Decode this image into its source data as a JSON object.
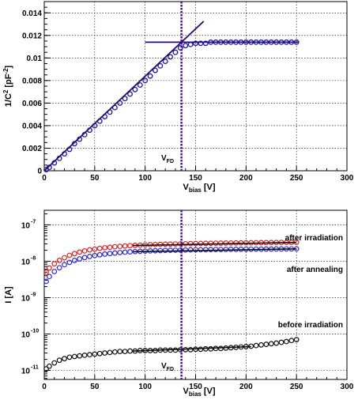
{
  "chart_data": [
    {
      "type": "scatter",
      "title": "",
      "xlabel": "V",
      "xlabel_sub": "bias",
      "xlabel_unit": "[V]",
      "ylabel": "1/C",
      "ylabel_sup": "2",
      "ylabel_unit_pre": "[pF",
      "ylabel_unit_sup": "-2",
      "ylabel_unit_post": "]",
      "xlim": [
        0,
        300
      ],
      "ylim": [
        0,
        0.015
      ],
      "grid": true,
      "x_ticks": [
        0,
        50,
        100,
        150,
        200,
        250,
        300
      ],
      "x_tick_labels": [
        "0",
        "50",
        "100",
        "150",
        "200",
        "250",
        "300"
      ],
      "y_ticks": [
        0,
        0.002,
        0.004,
        0.006,
        0.008,
        0.01,
        0.012,
        0.014
      ],
      "y_tick_labels": [
        "0",
        "0.002",
        "0.004",
        "0.006",
        "0.008",
        "0.01",
        "0.012",
        "0.014"
      ],
      "marker_color": "#1a1aa0",
      "fit_color": "#2a0a7a",
      "points": {
        "x": [
          2,
          5,
          10,
          15,
          20,
          25,
          30,
          35,
          40,
          45,
          50,
          55,
          60,
          65,
          70,
          75,
          80,
          85,
          90,
          95,
          100,
          105,
          110,
          115,
          120,
          125,
          130,
          135,
          140,
          145,
          150,
          155,
          160,
          165,
          170,
          175,
          180,
          185,
          190,
          195,
          200,
          205,
          210,
          215,
          220,
          225,
          230,
          235,
          240,
          245,
          250
        ],
        "y": [
          0.0001,
          0.0003,
          0.0007,
          0.0011,
          0.0015,
          0.0019,
          0.0024,
          0.0028,
          0.0032,
          0.0036,
          0.004,
          0.0044,
          0.0048,
          0.0052,
          0.0056,
          0.006,
          0.0064,
          0.0068,
          0.0072,
          0.0076,
          0.008,
          0.0084,
          0.0089,
          0.0093,
          0.0097,
          0.0101,
          0.0105,
          0.0109,
          0.0111,
          0.0112,
          0.0113,
          0.0113,
          0.0113,
          0.0114,
          0.0114,
          0.0114,
          0.0114,
          0.0114,
          0.0114,
          0.0114,
          0.0114,
          0.0114,
          0.0114,
          0.0114,
          0.0114,
          0.0114,
          0.0114,
          0.0114,
          0.0114,
          0.0114,
          0.0114
        ]
      },
      "fit_lines": [
        {
          "x": [
            0,
            158
          ],
          "y": [
            0,
            0.01325
          ]
        },
        {
          "x": [
            100,
            252
          ],
          "y": [
            0.0114,
            0.0114
          ]
        }
      ],
      "vline": {
        "x": 136,
        "color": "#4a1a8a",
        "label": "V",
        "label_sub": "FD"
      }
    },
    {
      "type": "scatter",
      "title": "",
      "xlabel": "V",
      "xlabel_sub": "bias",
      "xlabel_unit": "[V]",
      "ylabel": "I [A]",
      "xlim": [
        0,
        300
      ],
      "ylim_log10": [
        -11.25,
        -6.6
      ],
      "y_scale": "log",
      "grid": true,
      "x_ticks": [
        0,
        50,
        100,
        150,
        200,
        250,
        300
      ],
      "x_tick_labels": [
        "0",
        "50",
        "100",
        "150",
        "200",
        "250",
        "300"
      ],
      "y_ticks_log10": [
        -11,
        -10,
        -9,
        -8,
        -7
      ],
      "y_tick_labels": [
        "10",
        "10",
        "10",
        "10",
        "10"
      ],
      "y_tick_exps": [
        "-11",
        "-10",
        "-9",
        "-8",
        "-7"
      ],
      "x": [
        2,
        5,
        10,
        15,
        20,
        25,
        30,
        35,
        40,
        45,
        50,
        55,
        60,
        65,
        70,
        75,
        80,
        85,
        90,
        95,
        100,
        105,
        110,
        115,
        120,
        125,
        130,
        135,
        140,
        145,
        150,
        155,
        160,
        165,
        170,
        175,
        180,
        185,
        190,
        195,
        200,
        205,
        210,
        215,
        220,
        225,
        230,
        235,
        240,
        245,
        250
      ],
      "series": [
        {
          "name": "after irradiation",
          "color": "#dd2222",
          "values": [
            5e-09,
            6.5e-09,
            8.5e-09,
            1.05e-08,
            1.25e-08,
            1.45e-08,
            1.62e-08,
            1.78e-08,
            1.92e-08,
            2.05e-08,
            2.15e-08,
            2.25e-08,
            2.35e-08,
            2.42e-08,
            2.5e-08,
            2.56e-08,
            2.62e-08,
            2.68e-08,
            2.72e-08,
            2.76e-08,
            2.8e-08,
            2.84e-08,
            2.87e-08,
            2.9e-08,
            2.93e-08,
            2.95e-08,
            2.98e-08,
            3e-08,
            3.02e-08,
            3.04e-08,
            3.06e-08,
            3.08e-08,
            3.1e-08,
            3.11e-08,
            3.13e-08,
            3.14e-08,
            3.16e-08,
            3.17e-08,
            3.18e-08,
            3.2e-08,
            3.21e-08,
            3.22e-08,
            3.23e-08,
            3.24e-08,
            3.25e-08,
            3.26e-08,
            3.27e-08,
            3.28e-08,
            3.29e-08,
            3.3e-08,
            3.31e-08
          ]
        },
        {
          "name": "after annealing",
          "color": "#2a2add",
          "values": [
            2.8e-09,
            3.8e-09,
            5.2e-09,
            6.6e-09,
            8e-09,
            9.3e-09,
            1.05e-08,
            1.16e-08,
            1.26e-08,
            1.35e-08,
            1.43e-08,
            1.5e-08,
            1.57e-08,
            1.63e-08,
            1.68e-08,
            1.73e-08,
            1.77e-08,
            1.81e-08,
            1.84e-08,
            1.87e-08,
            1.9e-08,
            1.92e-08,
            1.94e-08,
            1.96e-08,
            1.98e-08,
            2e-08,
            2.01e-08,
            2.02e-08,
            2.03e-08,
            2.05e-08,
            2.06e-08,
            2.07e-08,
            2.08e-08,
            2.09e-08,
            2.1e-08,
            2.1e-08,
            2.11e-08,
            2.12e-08,
            2.12e-08,
            2.13e-08,
            2.14e-08,
            2.14e-08,
            2.15e-08,
            2.15e-08,
            2.16e-08,
            2.16e-08,
            2.17e-08,
            2.17e-08,
            2.18e-08,
            2.18e-08,
            2.19e-08
          ]
        },
        {
          "name": "before irradiation",
          "color": "#111111",
          "values": [
            1.1e-11,
            1.3e-11,
            1.6e-11,
            1.9e-11,
            2.1e-11,
            2.3e-11,
            2.4e-11,
            2.5e-11,
            2.6e-11,
            2.7e-11,
            2.8e-11,
            2.9e-11,
            3e-11,
            3.1e-11,
            3.2e-11,
            3.3e-11,
            3.3e-11,
            3.4e-11,
            3.4e-11,
            3.5e-11,
            3.5e-11,
            3.5e-11,
            3.5e-11,
            3.6e-11,
            3.6e-11,
            3.6e-11,
            3.6e-11,
            3.7e-11,
            3.7e-11,
            3.7e-11,
            3.8e-11,
            3.8e-11,
            3.9e-11,
            3.9e-11,
            4e-11,
            4e-11,
            4.1e-11,
            4.2e-11,
            4.3e-11,
            4.4e-11,
            4.5e-11,
            4.6e-11,
            4.8e-11,
            5e-11,
            5.2e-11,
            5.4e-11,
            5.6e-11,
            5.9e-11,
            6.2e-11,
            6.6e-11,
            7e-11
          ]
        }
      ],
      "fit_lines": [
        {
          "x": [
            88,
            250
          ],
          "y": [
            2.7e-08,
            3.28e-08
          ],
          "color": "#111111"
        },
        {
          "x": [
            88,
            250
          ],
          "y": [
            1.82e-08,
            2.18e-08
          ],
          "color": "#111111"
        },
        {
          "x": [
            88,
            205
          ],
          "y": [
            3.4e-11,
            4.5e-11
          ],
          "color": "#111111"
        }
      ],
      "vline": {
        "x": 136,
        "color": "#4a1a8a",
        "label": "V",
        "label_sub": "FD"
      }
    }
  ]
}
